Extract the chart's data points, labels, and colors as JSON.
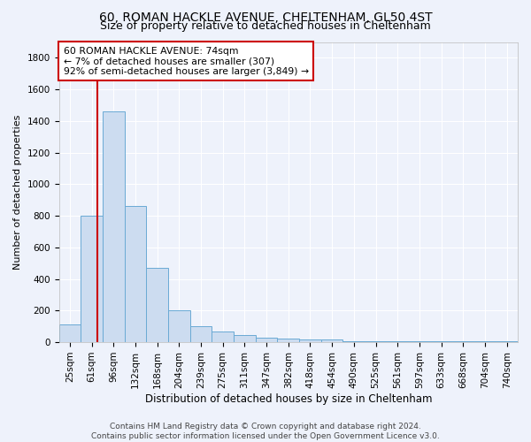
{
  "title1": "60, ROMAN HACKLE AVENUE, CHELTENHAM, GL50 4ST",
  "title2": "Size of property relative to detached houses in Cheltenham",
  "xlabel": "Distribution of detached houses by size in Cheltenham",
  "ylabel": "Number of detached properties",
  "categories": [
    "25sqm",
    "61sqm",
    "96sqm",
    "132sqm",
    "168sqm",
    "204sqm",
    "239sqm",
    "275sqm",
    "311sqm",
    "347sqm",
    "382sqm",
    "418sqm",
    "454sqm",
    "490sqm",
    "525sqm",
    "561sqm",
    "597sqm",
    "633sqm",
    "668sqm",
    "704sqm",
    "740sqm"
  ],
  "values": [
    110,
    800,
    1460,
    860,
    470,
    200,
    100,
    65,
    45,
    30,
    25,
    20,
    20,
    5,
    5,
    5,
    5,
    5,
    5,
    5,
    5
  ],
  "bar_color": "#ccdcf0",
  "bar_edge_color": "#6aaad4",
  "annotation_lines": [
    "60 ROMAN HACKLE AVENUE: 74sqm",
    "← 7% of detached houses are smaller (307)",
    "92% of semi-detached houses are larger (3,849) →"
  ],
  "annotation_box_color": "#ffffff",
  "annotation_box_edge_color": "#cc0000",
  "red_line_color": "#cc0000",
  "red_line_x": 1.28,
  "ylim": [
    0,
    1900
  ],
  "yticks": [
    0,
    200,
    400,
    600,
    800,
    1000,
    1200,
    1400,
    1600,
    1800
  ],
  "footer1": "Contains HM Land Registry data © Crown copyright and database right 2024.",
  "footer2": "Contains public sector information licensed under the Open Government Licence v3.0.",
  "background_color": "#eef2fb",
  "grid_color": "#ffffff",
  "title1_fontsize": 10,
  "title2_fontsize": 9,
  "tick_fontsize": 7.5,
  "ylabel_fontsize": 8,
  "xlabel_fontsize": 8.5,
  "annotation_fontsize": 7.8,
  "footer_fontsize": 6.5
}
